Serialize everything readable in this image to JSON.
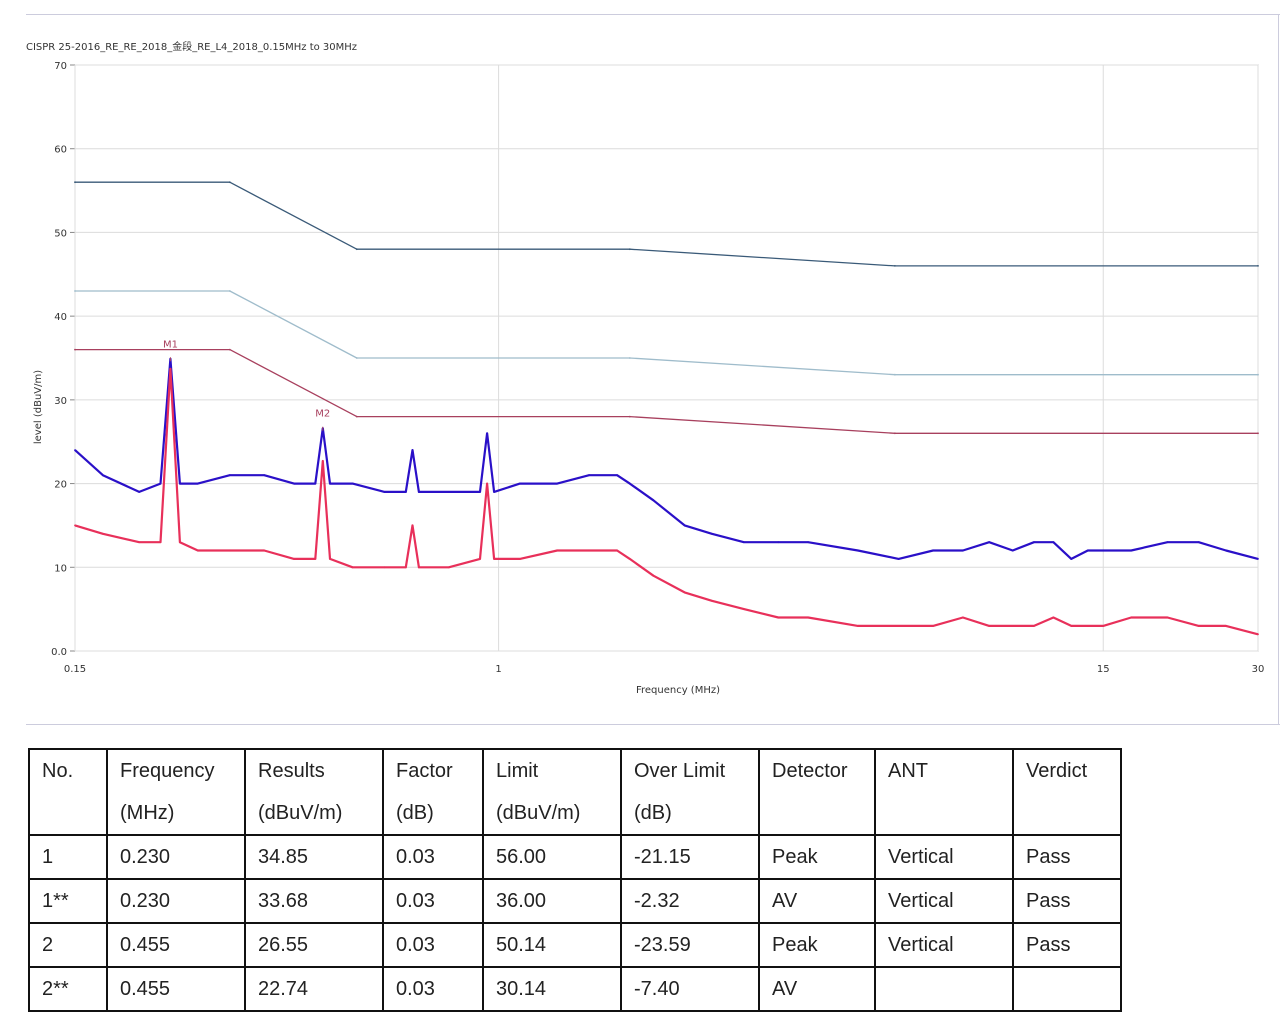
{
  "chart_data": {
    "type": "line",
    "title": "CISPR 25-2016_RE_RE_2018_金段_RE_L4_2018_0.15MHz to 30MHz",
    "xlabel": "Frequency (MHz)",
    "ylabel": "level (dBuV/m)",
    "x_scale": "log",
    "xlim": [
      0.15,
      30
    ],
    "ylim": [
      0,
      70
    ],
    "x_ticks": [
      0.15,
      1,
      15,
      30
    ],
    "x_tick_labels": [
      "0.15",
      "1",
      "15",
      "30"
    ],
    "y_ticks": [
      0,
      10,
      20,
      30,
      40,
      50,
      60,
      70
    ],
    "y_tick_labels": [
      "0.0",
      "10",
      "20",
      "30",
      "40",
      "50",
      "60",
      "70"
    ],
    "grid": true,
    "series": [
      {
        "name": "",
        "color": "#3a5a78",
        "style": "limit",
        "x": [
          0.15,
          0.3,
          0.53,
          1.8,
          5.9,
          30
        ],
        "y": [
          56,
          56,
          48,
          48,
          46,
          46
        ]
      },
      {
        "name": "",
        "color": "#9fbccb",
        "style": "limit",
        "x": [
          0.15,
          0.3,
          0.53,
          1.8,
          5.9,
          30
        ],
        "y": [
          43,
          43,
          35,
          35,
          33,
          33
        ]
      },
      {
        "name": "",
        "color": "#a8405e",
        "style": "limit",
        "x": [
          0.15,
          0.3,
          0.53,
          1.8,
          5.9,
          30
        ],
        "y": [
          36,
          36,
          28,
          28,
          26,
          26
        ]
      },
      {
        "name": "",
        "color": "#2a10c8",
        "style": "measurement",
        "x": [
          0.15,
          0.17,
          0.2,
          0.22,
          0.23,
          0.24,
          0.26,
          0.3,
          0.35,
          0.4,
          0.44,
          0.455,
          0.47,
          0.52,
          0.6,
          0.66,
          0.68,
          0.7,
          0.8,
          0.92,
          0.95,
          0.98,
          1.1,
          1.3,
          1.5,
          1.7,
          1.8,
          2.0,
          2.3,
          2.6,
          3.0,
          3.5,
          4.0,
          5.0,
          6.0,
          7.0,
          8.0,
          9.0,
          10,
          11,
          12,
          13,
          14,
          15,
          17,
          20,
          23,
          26,
          30
        ],
        "y": [
          24,
          21,
          19,
          20,
          34.9,
          20,
          20,
          21,
          21,
          20,
          20,
          26.6,
          20,
          20,
          19,
          19,
          24,
          19,
          19,
          19,
          26,
          19,
          20,
          20,
          21,
          21,
          20,
          18,
          15,
          14,
          13,
          13,
          13,
          12,
          11,
          12,
          12,
          13,
          12,
          13,
          13,
          11,
          12,
          12,
          12,
          13,
          13,
          12,
          11
        ]
      },
      {
        "name": "",
        "color": "#e8305a",
        "style": "measurement",
        "x": [
          0.15,
          0.17,
          0.2,
          0.22,
          0.23,
          0.24,
          0.26,
          0.3,
          0.35,
          0.4,
          0.44,
          0.455,
          0.47,
          0.52,
          0.6,
          0.66,
          0.68,
          0.7,
          0.8,
          0.92,
          0.95,
          0.98,
          1.1,
          1.3,
          1.5,
          1.7,
          1.8,
          2.0,
          2.3,
          2.6,
          3.0,
          3.5,
          4.0,
          5.0,
          6.0,
          7.0,
          8.0,
          9.0,
          10,
          11,
          12,
          13,
          14,
          15,
          17,
          20,
          23,
          26,
          30
        ],
        "y": [
          15,
          14,
          13,
          13,
          33.7,
          13,
          12,
          12,
          12,
          11,
          11,
          22.7,
          11,
          10,
          10,
          10,
          15,
          10,
          10,
          11,
          20,
          11,
          11,
          12,
          12,
          12,
          11,
          9,
          7,
          6,
          5,
          4,
          4,
          3,
          3,
          3,
          4,
          3,
          3,
          3,
          4,
          3,
          3,
          3,
          4,
          4,
          3,
          3,
          2
        ]
      }
    ],
    "markers": [
      {
        "label": "M1",
        "x": 0.23,
        "y": 34.85,
        "color": "#a8405e"
      },
      {
        "label": "M2",
        "x": 0.455,
        "y": 26.55,
        "color": "#a8405e"
      }
    ]
  },
  "table": {
    "headers": [
      {
        "line1": "No.",
        "line2": ""
      },
      {
        "line1": "Frequency",
        "line2": "(MHz)"
      },
      {
        "line1": "Results",
        "line2": "(dBuV/m)"
      },
      {
        "line1": "Factor",
        "line2": "(dB)"
      },
      {
        "line1": "Limit",
        "line2": "(dBuV/m)"
      },
      {
        "line1": "Over Limit",
        "line2": "(dB)"
      },
      {
        "line1": "Detector",
        "line2": ""
      },
      {
        "line1": "ANT",
        "line2": ""
      },
      {
        "line1": "Verdict",
        "line2": ""
      }
    ],
    "rows": [
      [
        "1",
        "0.230",
        "34.85",
        "0.03",
        "56.00",
        "-21.15",
        "Peak",
        "Vertical",
        "Pass"
      ],
      [
        "1**",
        "0.230",
        "33.68",
        "0.03",
        "36.00",
        "-2.32",
        "AV",
        "Vertical",
        "Pass"
      ],
      [
        "2",
        "0.455",
        "26.55",
        "0.03",
        "50.14",
        "-23.59",
        "Peak",
        "Vertical",
        "Pass"
      ],
      [
        "2**",
        "0.455",
        "22.74",
        "0.03",
        "30.14",
        "-7.40",
        "AV",
        "",
        ""
      ]
    ]
  }
}
